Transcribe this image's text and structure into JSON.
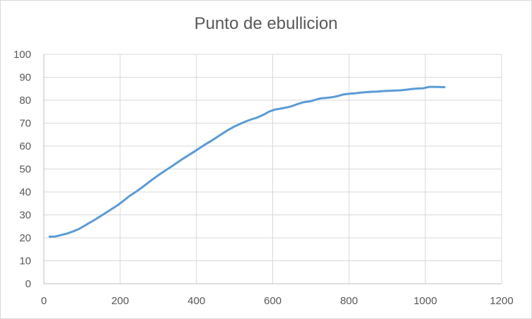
{
  "chart_data": {
    "type": "line",
    "title": "Punto de ebullicion",
    "xlabel": "",
    "ylabel": "",
    "xlim": [
      0,
      1200
    ],
    "ylim": [
      0,
      100
    ],
    "x_ticks": [
      0,
      200,
      400,
      600,
      800,
      1000,
      1200
    ],
    "y_ticks": [
      0,
      10,
      20,
      30,
      40,
      50,
      60,
      70,
      80,
      90,
      100
    ],
    "grid": true,
    "legend": "none",
    "series": [
      {
        "color": "#5b9bd5",
        "x": [
          15,
          30,
          45,
          60,
          75,
          90,
          105,
          120,
          135,
          150,
          165,
          180,
          195,
          210,
          225,
          240,
          255,
          270,
          285,
          300,
          320,
          340,
          360,
          380,
          400,
          420,
          440,
          460,
          480,
          500,
          515,
          530,
          545,
          560,
          575,
          590,
          605,
          620,
          635,
          650,
          665,
          680,
          695,
          710,
          725,
          740,
          755,
          770,
          785,
          800,
          815,
          830,
          845,
          860,
          875,
          890,
          905,
          920,
          935,
          950,
          965,
          980,
          995,
          1010,
          1025,
          1050
        ],
        "y": [
          20.5,
          20.6,
          21.2,
          21.8,
          22.7,
          23.7,
          25.1,
          26.6,
          28.0,
          29.6,
          31.2,
          32.8,
          34.4,
          36.3,
          38.3,
          39.9,
          41.7,
          43.6,
          45.5,
          47.3,
          49.5,
          51.7,
          54.0,
          56.1,
          58.2,
          60.4,
          62.4,
          64.6,
          66.7,
          68.6,
          69.7,
          70.8,
          71.7,
          72.5,
          73.6,
          75.0,
          75.9,
          76.3,
          76.8,
          77.4,
          78.3,
          79.1,
          79.4,
          80.1,
          80.8,
          81.0,
          81.3,
          81.8,
          82.5,
          82.8,
          83.0,
          83.3,
          83.5,
          83.7,
          83.8,
          84.0,
          84.1,
          84.2,
          84.3,
          84.6,
          84.9,
          85.1,
          85.2,
          85.8,
          85.8,
          85.7
        ]
      }
    ]
  }
}
